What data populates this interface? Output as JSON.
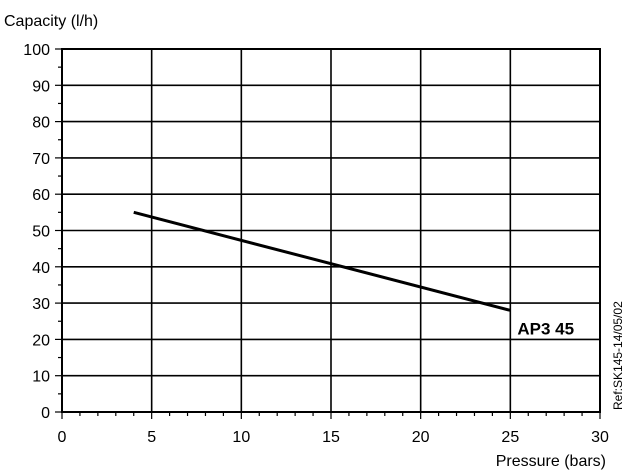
{
  "chart_data": {
    "type": "line",
    "title": "",
    "xlabel": "Pressure (bars)",
    "ylabel": "Capacity (l/h)",
    "xlim": [
      0,
      30
    ],
    "ylim": [
      0,
      100
    ],
    "x_ticks": [
      0,
      5,
      10,
      15,
      20,
      25,
      30
    ],
    "y_ticks": [
      0,
      10,
      20,
      30,
      40,
      50,
      60,
      70,
      80,
      90,
      100
    ],
    "grid": true,
    "series": [
      {
        "name": "AP3 45",
        "color": "#000000",
        "points": [
          {
            "x": 4,
            "y": 55
          },
          {
            "x": 25,
            "y": 28
          }
        ]
      }
    ],
    "reference": "Ref:SK145-14/05/02"
  }
}
